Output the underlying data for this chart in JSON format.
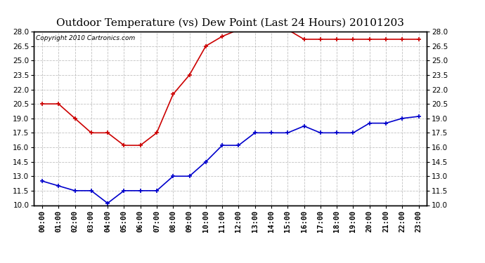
{
  "title": "Outdoor Temperature (vs) Dew Point (Last 24 Hours) 20101203",
  "copyright_text": "Copyright 2010 Cartronics.com",
  "hours": [
    "00:00",
    "01:00",
    "02:00",
    "03:00",
    "04:00",
    "05:00",
    "06:00",
    "07:00",
    "08:00",
    "09:00",
    "10:00",
    "11:00",
    "12:00",
    "13:00",
    "14:00",
    "15:00",
    "16:00",
    "17:00",
    "18:00",
    "19:00",
    "20:00",
    "21:00",
    "22:00",
    "23:00"
  ],
  "temp_red": [
    20.5,
    20.5,
    19.0,
    17.5,
    17.5,
    16.2,
    16.2,
    17.5,
    21.5,
    23.5,
    26.5,
    27.5,
    28.2,
    28.2,
    28.2,
    28.2,
    27.2,
    27.2,
    27.2,
    27.2,
    27.2,
    27.2,
    27.2,
    27.2
  ],
  "temp_blue": [
    12.5,
    12.0,
    11.5,
    11.5,
    10.2,
    11.5,
    11.5,
    11.5,
    13.0,
    13.0,
    14.5,
    16.2,
    16.2,
    17.5,
    17.5,
    17.5,
    18.2,
    17.5,
    17.5,
    17.5,
    18.5,
    18.5,
    19.0,
    19.2
  ],
  "ylim": [
    10.0,
    28.0
  ],
  "yticks": [
    10.0,
    11.5,
    13.0,
    14.5,
    16.0,
    17.5,
    19.0,
    20.5,
    22.0,
    23.5,
    25.0,
    26.5,
    28.0
  ],
  "red_color": "#cc0000",
  "blue_color": "#0000cc",
  "bg_color": "#ffffff",
  "grid_color": "#bbbbbb",
  "title_fontsize": 11,
  "copyright_fontsize": 6.5,
  "tick_fontsize": 7.5,
  "marker_size": 4,
  "line_width": 1.2
}
